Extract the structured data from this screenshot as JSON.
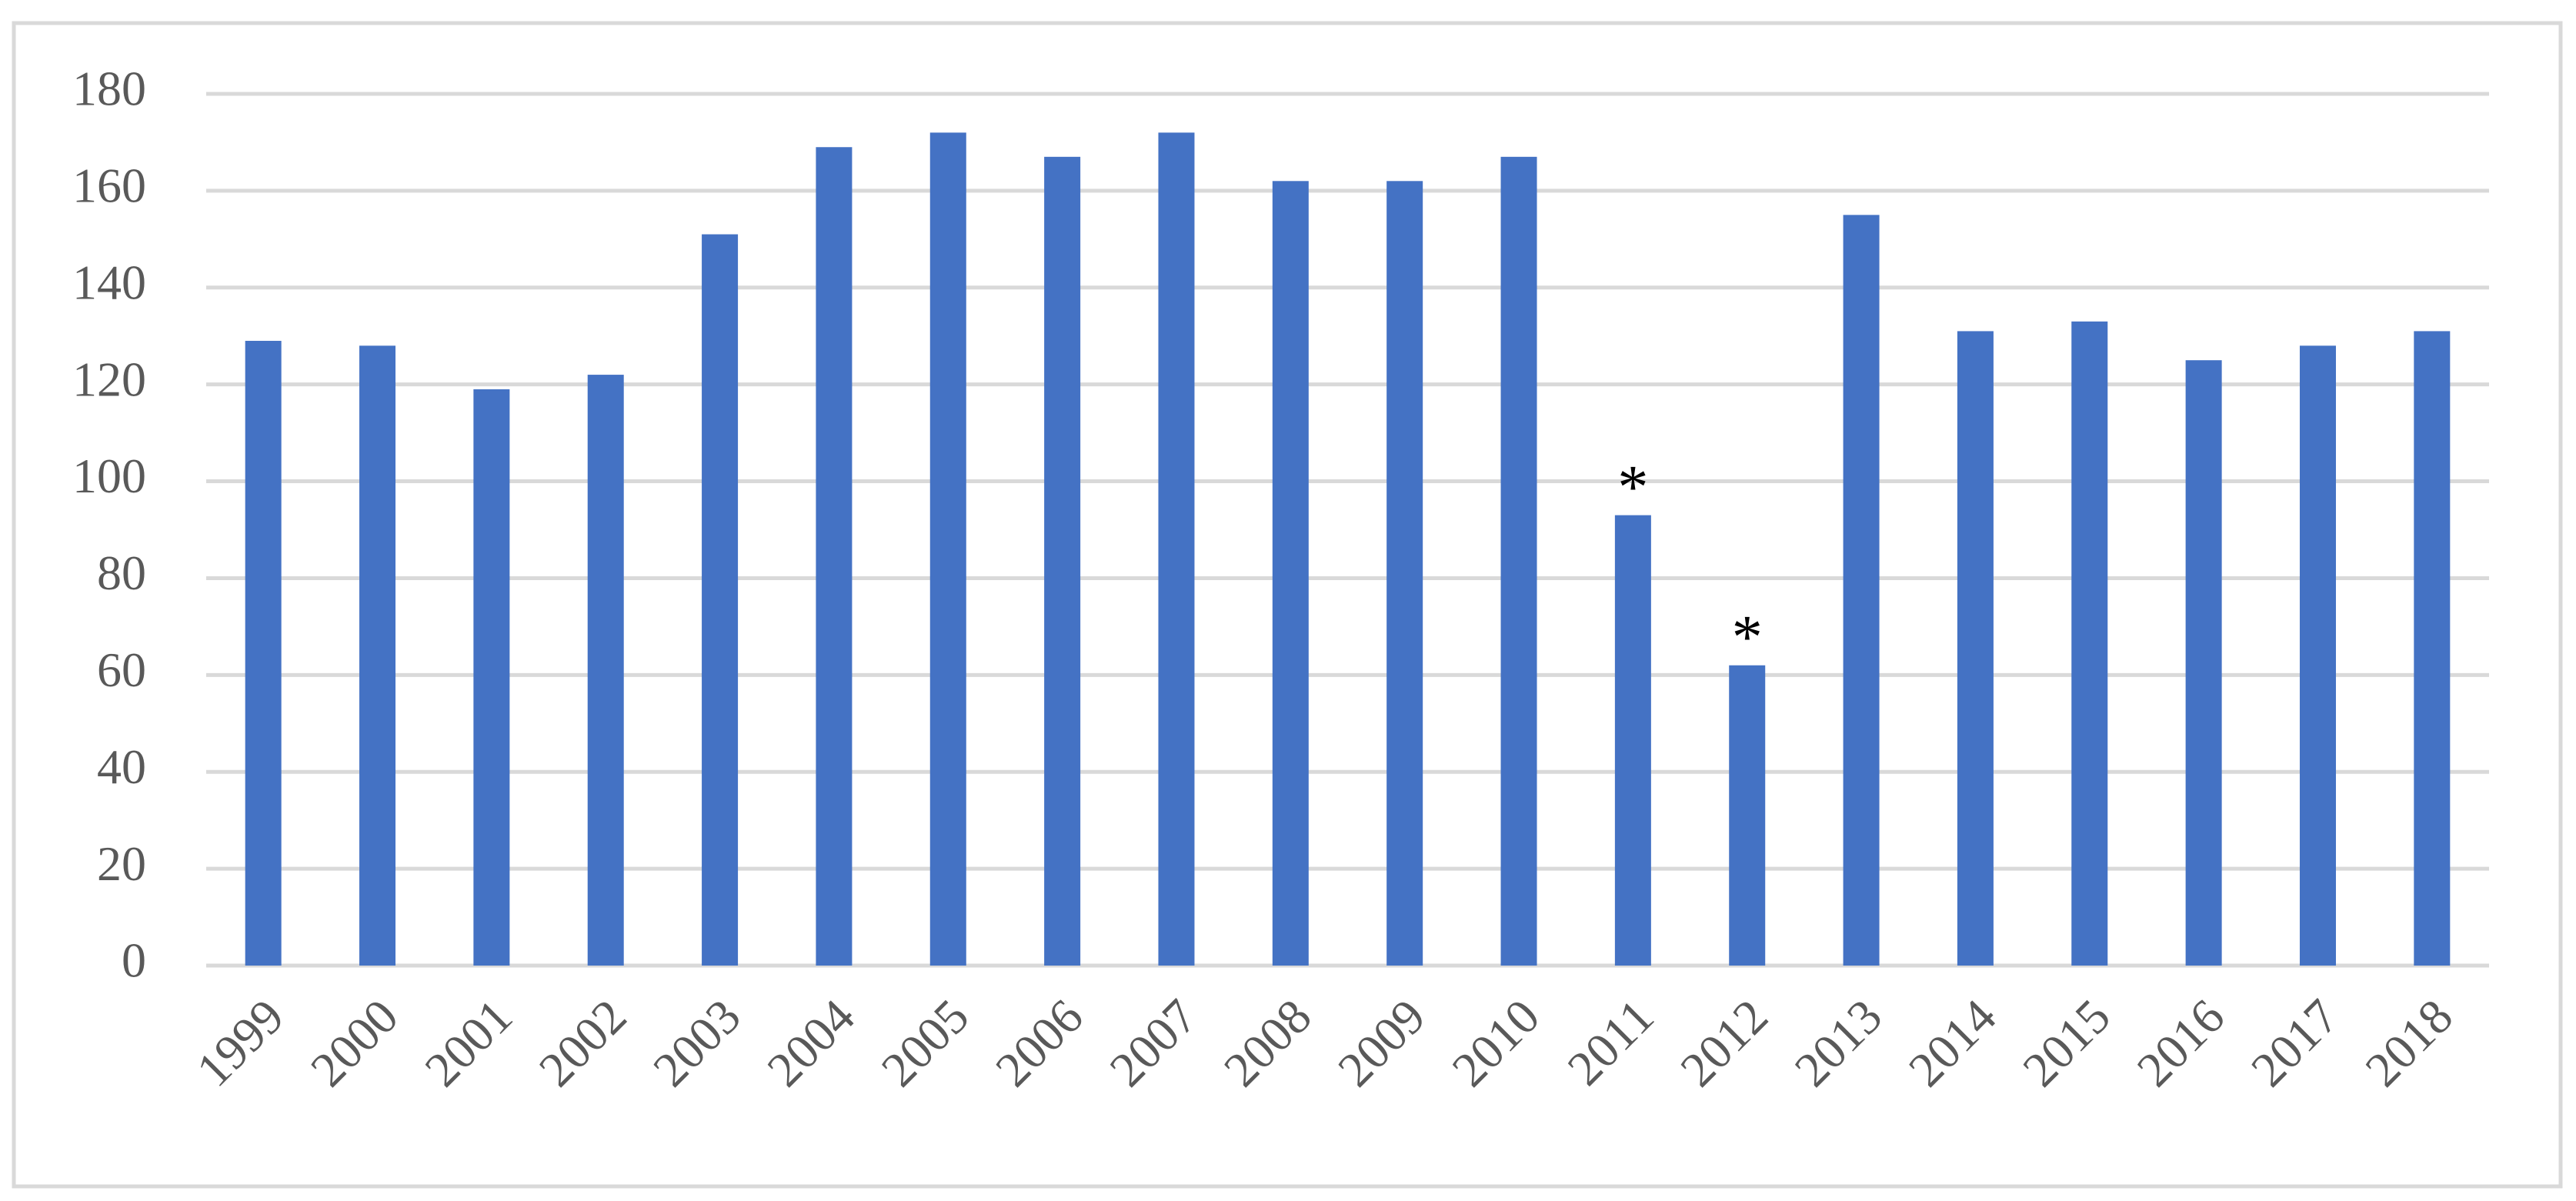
{
  "chart_data": {
    "type": "bar",
    "categories": [
      "1999",
      "2000",
      "2001",
      "2002",
      "2003",
      "2004",
      "2005",
      "2006",
      "2007",
      "2008",
      "2009",
      "2010",
      "2011",
      "2012",
      "2013",
      "2014",
      "2015",
      "2016",
      "2017",
      "2018"
    ],
    "values": [
      129,
      128,
      119,
      122,
      151,
      169,
      172,
      167,
      172,
      162,
      162,
      167,
      93,
      62,
      155,
      131,
      133,
      125,
      128,
      131
    ],
    "color": "#4472c4",
    "ylim": [
      0,
      180
    ],
    "yticks": [
      0,
      20,
      40,
      60,
      80,
      100,
      120,
      140,
      160,
      180
    ],
    "grid": true,
    "annotations": [
      {
        "text": "*",
        "x": "2011"
      },
      {
        "text": "*",
        "x": "2012"
      }
    ]
  }
}
